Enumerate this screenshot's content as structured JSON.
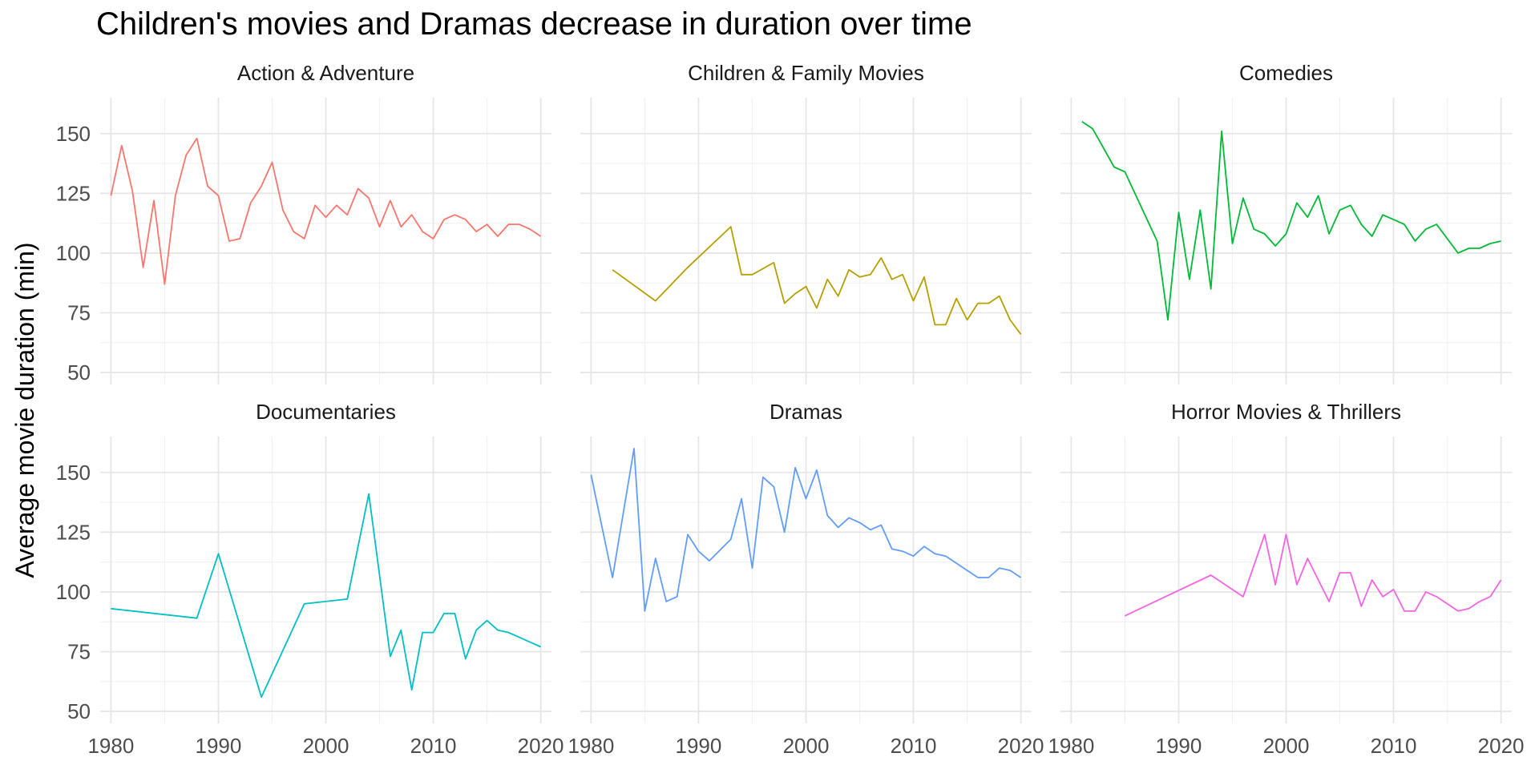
{
  "title": "Children's movies and Dramas decrease in duration over time",
  "chart_data": {
    "type": "line",
    "title": "Children's movies and Dramas decrease in duration over time",
    "xlabel": "",
    "ylabel": "Average movie duration (min)",
    "xlim": [
      1979,
      2021
    ],
    "ylim": [
      45,
      165
    ],
    "x_ticks": [
      1980,
      1990,
      2000,
      2010,
      2020
    ],
    "y_ticks": [
      50,
      75,
      100,
      125,
      150
    ],
    "grid": true,
    "legend": "none",
    "panels": [
      {
        "name": "Action & Adventure",
        "color": "#F8766D",
        "x": [
          1980,
          1981,
          1982,
          1983,
          1984,
          1985,
          1986,
          1987,
          1988,
          1989,
          1990,
          1991,
          1992,
          1993,
          1994,
          1995,
          1996,
          1997,
          1998,
          1999,
          2000,
          2001,
          2002,
          2003,
          2004,
          2005,
          2006,
          2007,
          2008,
          2009,
          2010,
          2011,
          2012,
          2013,
          2014,
          2015,
          2016,
          2017,
          2018,
          2019,
          2020
        ],
        "values": [
          124,
          145,
          126,
          94,
          122,
          87,
          124,
          141,
          148,
          128,
          124,
          105,
          106,
          121,
          128,
          138,
          118,
          109,
          106,
          120,
          115,
          120,
          116,
          127,
          123,
          111,
          122,
          111,
          116,
          109,
          106,
          114,
          116,
          114,
          109,
          112,
          107,
          112,
          112,
          110,
          107
        ]
      },
      {
        "name": "Children & Family Movies",
        "color": "#B79F00",
        "x": [
          1982,
          1986,
          1989,
          1993,
          1994,
          1995,
          1997,
          1998,
          1999,
          2000,
          2001,
          2002,
          2003,
          2004,
          2005,
          2006,
          2007,
          2008,
          2009,
          2010,
          2011,
          2012,
          2013,
          2014,
          2015,
          2016,
          2017,
          2018,
          2019,
          2020
        ],
        "values": [
          93,
          80,
          94,
          111,
          91,
          91,
          96,
          79,
          83,
          86,
          77,
          89,
          82,
          93,
          90,
          91,
          98,
          89,
          91,
          80,
          90,
          70,
          70,
          81,
          72,
          79,
          79,
          82,
          72,
          66
        ]
      },
      {
        "name": "Comedies",
        "color": "#00BA38",
        "x": [
          1981,
          1982,
          1984,
          1985,
          1988,
          1989,
          1990,
          1991,
          1992,
          1993,
          1994,
          1995,
          1996,
          1997,
          1998,
          1999,
          2000,
          2001,
          2002,
          2003,
          2004,
          2005,
          2006,
          2007,
          2008,
          2009,
          2010,
          2011,
          2012,
          2013,
          2014,
          2015,
          2016,
          2017,
          2018,
          2019,
          2020
        ],
        "values": [
          155,
          152,
          136,
          134,
          105,
          72,
          117,
          89,
          118,
          85,
          151,
          104,
          123,
          110,
          108,
          103,
          108,
          121,
          115,
          124,
          108,
          118,
          120,
          112,
          107,
          116,
          114,
          112,
          105,
          110,
          112,
          106,
          100,
          102,
          102,
          104,
          105
        ]
      },
      {
        "name": "Documentaries",
        "color": "#00BFC4",
        "x": [
          1980,
          1988,
          1990,
          1994,
          1998,
          2002,
          2004,
          2006,
          2007,
          2008,
          2009,
          2010,
          2011,
          2012,
          2013,
          2014,
          2015,
          2016,
          2017,
          2018,
          2019,
          2020
        ],
        "values": [
          93,
          89,
          116,
          56,
          95,
          97,
          141,
          73,
          84,
          59,
          83,
          83,
          91,
          91,
          72,
          84,
          88,
          84,
          83,
          81,
          79,
          77
        ]
      },
      {
        "name": "Dramas",
        "color": "#619CFF",
        "x": [
          1980,
          1982,
          1984,
          1985,
          1986,
          1987,
          1988,
          1989,
          1990,
          1991,
          1993,
          1994,
          1995,
          1996,
          1997,
          1998,
          1999,
          2000,
          2001,
          2002,
          2003,
          2004,
          2005,
          2006,
          2007,
          2008,
          2009,
          2010,
          2011,
          2012,
          2013,
          2014,
          2015,
          2016,
          2017,
          2018,
          2019,
          2020
        ],
        "values": [
          149,
          106,
          160,
          92,
          114,
          96,
          98,
          124,
          117,
          113,
          122,
          139,
          110,
          148,
          144,
          125,
          152,
          139,
          151,
          132,
          127,
          131,
          129,
          126,
          128,
          118,
          117,
          115,
          119,
          116,
          115,
          112,
          109,
          106,
          106,
          110,
          109,
          106
        ]
      },
      {
        "name": "Horror Movies & Thrillers",
        "color": "#F564E3",
        "x": [
          1985,
          1993,
          1996,
          1998,
          1999,
          2000,
          2001,
          2002,
          2003,
          2004,
          2005,
          2006,
          2007,
          2008,
          2009,
          2010,
          2011,
          2012,
          2013,
          2014,
          2015,
          2016,
          2017,
          2018,
          2019,
          2020
        ],
        "values": [
          90,
          107,
          98,
          124,
          103,
          124,
          103,
          114,
          105,
          96,
          108,
          108,
          94,
          105,
          98,
          101,
          92,
          92,
          100,
          98,
          95,
          92,
          93,
          96,
          98,
          105
        ]
      }
    ]
  }
}
